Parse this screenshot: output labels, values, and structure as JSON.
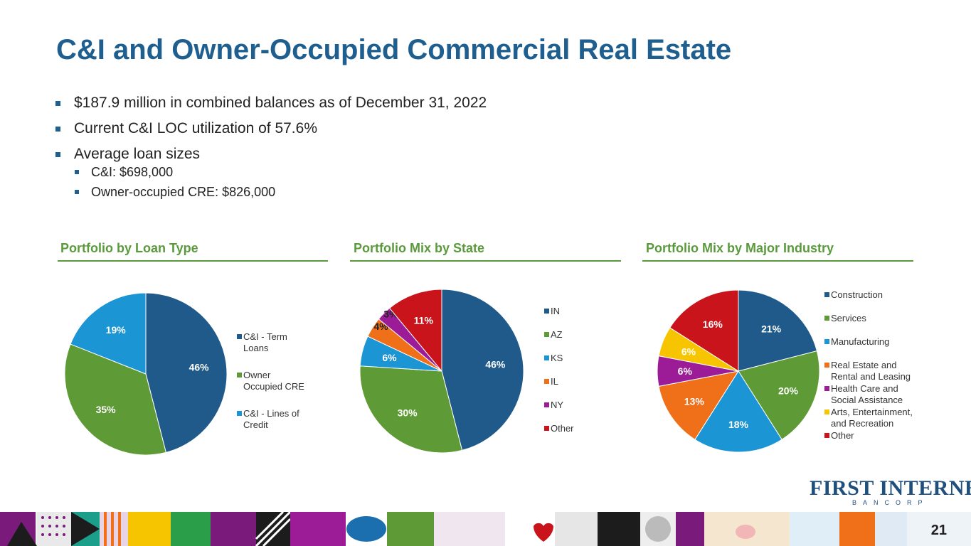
{
  "title": "C&I and Owner-Occupied Commercial Real Estate",
  "bullets": [
    {
      "text": "$187.9 million in combined balances as of December 31, 2022"
    },
    {
      "text": "Current C&I LOC utilization of 57.6%"
    },
    {
      "text": "Average loan sizes"
    }
  ],
  "sub_bullets": [
    {
      "text": "C&I: $698,000"
    },
    {
      "text": "Owner-occupied CRE: $826,000"
    }
  ],
  "colors": {
    "title": "#1f5f8f",
    "accent_green": "#5b9a3c",
    "navy": "#1f5a8a",
    "green": "#5e9a35",
    "sky": "#1b95d3",
    "orange": "#f0701a",
    "purple": "#9b1c96",
    "yellow": "#f7c400",
    "red": "#c8141a"
  },
  "logo": {
    "main": "FIRST INTERNET",
    "sub": "BANCORP"
  },
  "page_number": "21",
  "chart_data": [
    {
      "type": "pie",
      "title": "Portfolio by Loan Type",
      "labels": [
        "C&I - Term Loans",
        "Owner Occupied CRE",
        "C&I - Lines of Credit"
      ],
      "legend_lines": [
        [
          "C&I - Term",
          "Loans"
        ],
        [
          "Owner",
          "Occupied CRE"
        ],
        [
          "C&I - Lines of",
          "Credit"
        ]
      ],
      "values": [
        46,
        35,
        19
      ],
      "value_labels": [
        "46%",
        "35%",
        "19%"
      ],
      "colors": [
        "#1f5a8a",
        "#5e9a35",
        "#1b95d3"
      ],
      "legend_position": "right"
    },
    {
      "type": "pie",
      "title": "Portfolio Mix by State",
      "labels": [
        "IN",
        "AZ",
        "KS",
        "IL",
        "NY",
        "Other"
      ],
      "legend_lines": [
        [
          "IN"
        ],
        [
          "AZ"
        ],
        [
          "KS"
        ],
        [
          "IL"
        ],
        [
          "NY"
        ],
        [
          "Other"
        ]
      ],
      "values": [
        46,
        30,
        6,
        4,
        3,
        11
      ],
      "value_labels": [
        "46%",
        "30%",
        "6%",
        "4%",
        "3%",
        "11%"
      ],
      "colors": [
        "#1f5a8a",
        "#5e9a35",
        "#1b95d3",
        "#f0701a",
        "#9b1c96",
        "#c8141a"
      ],
      "legend_position": "right"
    },
    {
      "type": "pie",
      "title": "Portfolio Mix by Major Industry",
      "labels": [
        "Construction",
        "Services",
        "Manufacturing",
        "Real Estate and Rental and Leasing",
        "Health Care and Social Assistance",
        "Arts, Entertainment, and Recreation",
        "Other"
      ],
      "legend_lines": [
        [
          "Construction"
        ],
        [
          "Services"
        ],
        [
          "Manufacturing"
        ],
        [
          "Real Estate and",
          "Rental and Leasing"
        ],
        [
          "Health Care and",
          "Social Assistance"
        ],
        [
          "Arts, Entertainment,",
          "and Recreation"
        ],
        [
          "Other"
        ]
      ],
      "values": [
        21,
        20,
        18,
        13,
        6,
        6,
        16
      ],
      "value_labels": [
        "21%",
        "20%",
        "18%",
        "13%",
        "6%",
        "6%",
        "16%"
      ],
      "colors": [
        "#1f5a8a",
        "#5e9a35",
        "#1b95d3",
        "#f0701a",
        "#9b1c96",
        "#f7c400",
        "#c8141a"
      ],
      "legend_position": "right"
    }
  ]
}
